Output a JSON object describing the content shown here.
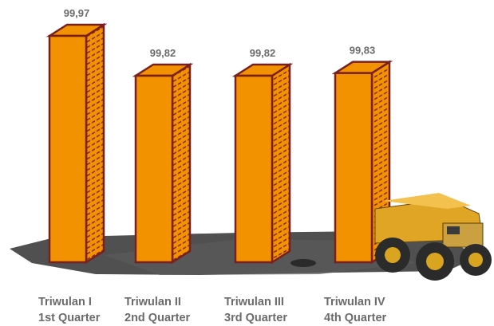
{
  "chart_data": {
    "type": "bar3d",
    "categories": [
      "Triwulan I",
      "Triwulan II",
      "Triwulan III",
      "Triwulan IV"
    ],
    "categories_en": [
      "1st Quarter",
      "2nd Quarter",
      "3rd Quarter",
      "4th Quarter"
    ],
    "values": [
      99.97,
      99.82,
      99.82,
      99.83
    ],
    "value_labels": [
      "99,97",
      "99,82",
      "99,82",
      "99,83"
    ],
    "color": "#f39200"
  }
}
